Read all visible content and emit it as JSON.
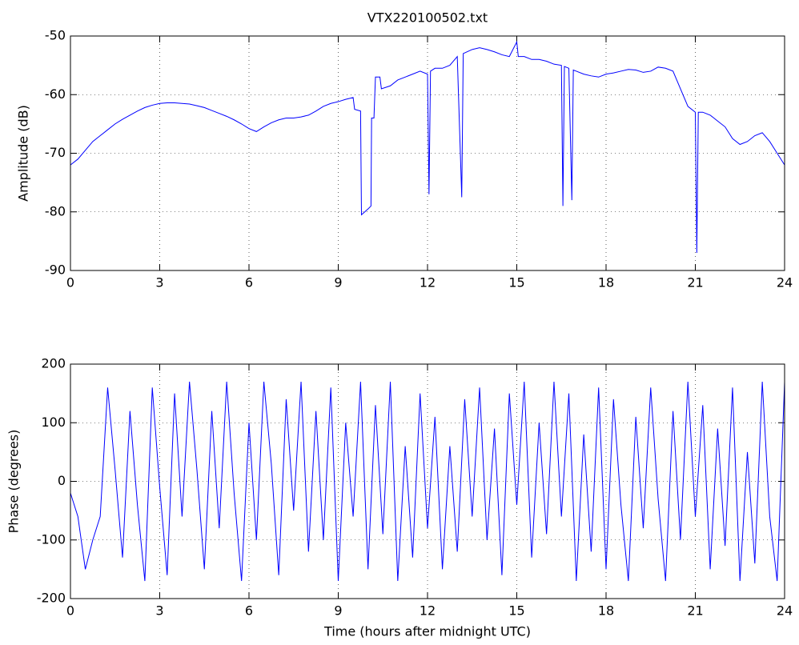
{
  "chart_data": [
    {
      "type": "line",
      "title": "VTX220100502.txt",
      "ylabel": "Amplitude (dB)",
      "color": "#0000ff",
      "grid": true,
      "xlim": [
        0,
        24
      ],
      "xticks": [
        0,
        3,
        6,
        9,
        12,
        15,
        18,
        21,
        24
      ],
      "ylim": [
        -90,
        -50
      ],
      "yticks": [
        -90,
        -80,
        -70,
        -60,
        -50
      ],
      "x": [
        0,
        0.25,
        0.5,
        0.75,
        1,
        1.25,
        1.5,
        1.75,
        2,
        2.25,
        2.5,
        2.75,
        3,
        3.25,
        3.5,
        3.75,
        4,
        4.25,
        4.5,
        4.75,
        5,
        5.25,
        5.5,
        5.75,
        6,
        6.25,
        6.5,
        6.75,
        7,
        7.25,
        7.5,
        7.75,
        8,
        8.25,
        8.5,
        8.75,
        9,
        9.25,
        9.5,
        9.55,
        9.75,
        9.78,
        10,
        10.1,
        10.12,
        10.2,
        10.25,
        10.4,
        10.45,
        10.75,
        11,
        11.25,
        11.5,
        11.75,
        12,
        12.05,
        12.1,
        12.25,
        12.5,
        12.75,
        13,
        13.15,
        13.2,
        13.5,
        13.75,
        14,
        14.25,
        14.5,
        14.75,
        15,
        15.05,
        15.25,
        15.5,
        15.75,
        16,
        16.25,
        16.5,
        16.55,
        16.6,
        16.75,
        16.85,
        16.9,
        17,
        17.25,
        17.5,
        17.75,
        18,
        18.25,
        18.5,
        18.75,
        19,
        19.25,
        19.5,
        19.75,
        20,
        20.25,
        20.5,
        20.75,
        21,
        21.05,
        21.1,
        21.25,
        21.5,
        21.75,
        22,
        22.25,
        22.5,
        22.75,
        23,
        23.25,
        23.5,
        23.75,
        24
      ],
      "values": [
        -72,
        -71,
        -69.5,
        -68,
        -67,
        -66,
        -65,
        -64.2,
        -63.5,
        -62.8,
        -62.2,
        -61.8,
        -61.5,
        -61.4,
        -61.4,
        -61.5,
        -61.6,
        -61.9,
        -62.2,
        -62.7,
        -63.2,
        -63.7,
        -64.3,
        -65,
        -65.8,
        -66.3,
        -65.5,
        -64.8,
        -64.3,
        -64,
        -64,
        -63.8,
        -63.5,
        -62.8,
        -62,
        -61.5,
        -61.2,
        -60.8,
        -60.5,
        -62.5,
        -62.8,
        -80.5,
        -79.5,
        -79,
        -64,
        -64,
        -57,
        -57,
        -59,
        -58.5,
        -57.5,
        -57,
        -56.5,
        -56,
        -56.5,
        -77,
        -56,
        -55.5,
        -55.5,
        -55,
        -53.5,
        -77.5,
        -53,
        -52.3,
        -52,
        -52.3,
        -52.7,
        -53.2,
        -53.5,
        -51,
        -53.5,
        -53.5,
        -54,
        -54,
        -54.3,
        -54.8,
        -55,
        -79,
        -55.2,
        -55.5,
        -78,
        -55.8,
        -56,
        -56.5,
        -56.8,
        -57,
        -56.5,
        -56.3,
        -56,
        -55.7,
        -55.8,
        -56.2,
        -56,
        -55.3,
        -55.5,
        -56,
        -59,
        -62,
        -63,
        -87,
        -63,
        -63,
        -63.5,
        -64.5,
        -65.5,
        -67.5,
        -68.5,
        -68,
        -67,
        -66.5,
        -68,
        -70,
        -72
      ]
    },
    {
      "type": "line",
      "ylabel": "Phase (degrees)",
      "xlabel": "Time (hours after midnight UTC)",
      "color": "#0000ff",
      "grid": true,
      "xlim": [
        0,
        24
      ],
      "xticks": [
        0,
        3,
        6,
        9,
        12,
        15,
        18,
        21,
        24
      ],
      "ylim": [
        -200,
        200
      ],
      "yticks": [
        -200,
        -100,
        0,
        100,
        200
      ],
      "x": [
        0,
        0.25,
        0.5,
        0.75,
        1,
        1.25,
        1.5,
        1.75,
        2,
        2.25,
        2.5,
        2.75,
        3,
        3.25,
        3.5,
        3.75,
        4,
        4.25,
        4.5,
        4.75,
        5,
        5.25,
        5.5,
        5.75,
        6,
        6.25,
        6.5,
        6.75,
        7,
        7.25,
        7.5,
        7.75,
        8,
        8.25,
        8.5,
        8.75,
        9,
        9.25,
        9.5,
        9.75,
        10,
        10.25,
        10.5,
        10.75,
        11,
        11.25,
        11.5,
        11.75,
        12,
        12.25,
        12.5,
        12.75,
        13,
        13.25,
        13.5,
        13.75,
        14,
        14.25,
        14.5,
        14.75,
        15,
        15.25,
        15.5,
        15.75,
        16,
        16.25,
        16.5,
        16.75,
        17,
        17.25,
        17.5,
        17.75,
        18,
        18.25,
        18.5,
        18.75,
        19,
        19.25,
        19.5,
        19.75,
        20,
        20.25,
        20.5,
        20.75,
        21,
        21.25,
        21.5,
        21.75,
        22,
        22.25,
        22.5,
        22.75,
        23,
        23.25,
        23.5,
        23.75,
        24
      ],
      "values": [
        -20,
        -60,
        -150,
        -100,
        -60,
        160,
        20,
        -130,
        120,
        -40,
        -170,
        160,
        -10,
        -160,
        150,
        -60,
        170,
        20,
        -150,
        120,
        -80,
        170,
        -20,
        -170,
        100,
        -100,
        170,
        30,
        -160,
        140,
        -50,
        170,
        -120,
        120,
        -100,
        160,
        -170,
        100,
        -60,
        170,
        -150,
        130,
        -90,
        170,
        -170,
        60,
        -130,
        150,
        -80,
        110,
        -150,
        60,
        -120,
        140,
        -60,
        160,
        -100,
        90,
        -160,
        150,
        -40,
        170,
        -130,
        100,
        -90,
        170,
        -60,
        150,
        -170,
        80,
        -120,
        160,
        -150,
        140,
        -40,
        -170,
        110,
        -80,
        160,
        -30,
        -170,
        120,
        -100,
        170,
        -60,
        130,
        -150,
        90,
        -110,
        160,
        -170,
        50,
        -140,
        170,
        -60,
        -170,
        170
      ]
    }
  ]
}
